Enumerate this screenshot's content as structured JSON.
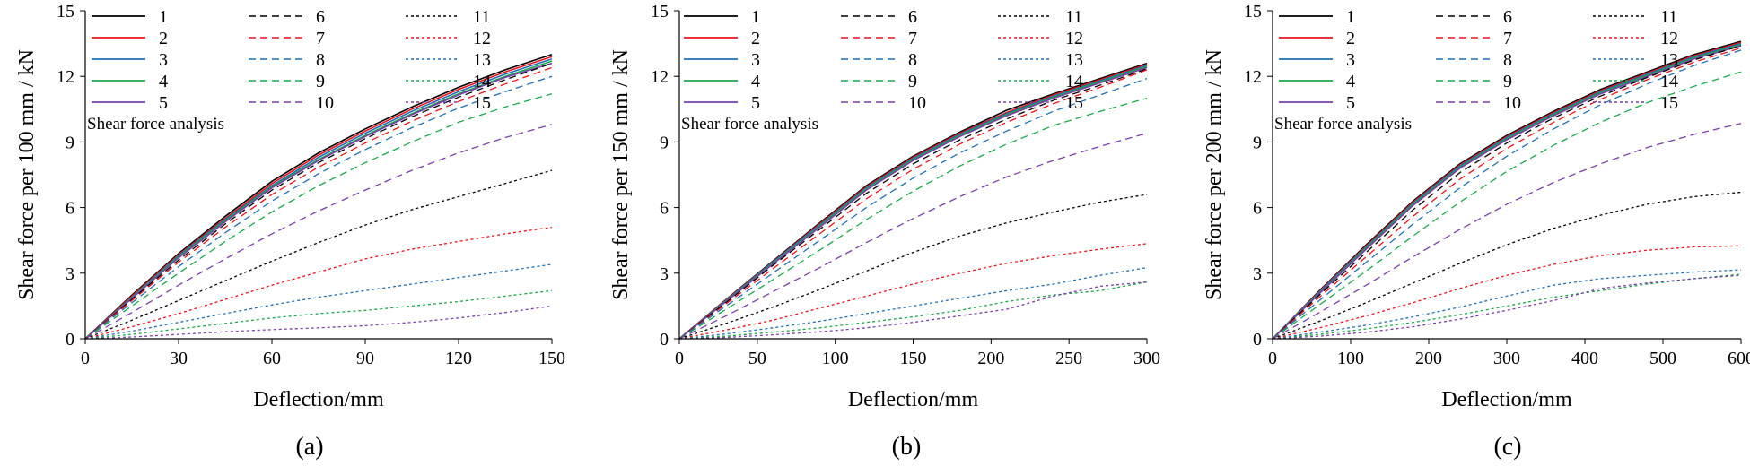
{
  "colors": {
    "black": "#000000",
    "red": "#e8141b",
    "blue": "#1f6fb5",
    "green": "#1aa84a",
    "purple": "#7a3fa8"
  },
  "series_style": [
    {
      "name": "1",
      "color": "#000000",
      "dash": "solid"
    },
    {
      "name": "2",
      "color": "#e8141b",
      "dash": "solid"
    },
    {
      "name": "3",
      "color": "#1f6fb5",
      "dash": "solid"
    },
    {
      "name": "4",
      "color": "#1aa84a",
      "dash": "solid"
    },
    {
      "name": "5",
      "color": "#7a3fa8",
      "dash": "solid"
    },
    {
      "name": "6",
      "color": "#000000",
      "dash": "dashed"
    },
    {
      "name": "7",
      "color": "#e8141b",
      "dash": "dashed"
    },
    {
      "name": "8",
      "color": "#1f6fb5",
      "dash": "dashed"
    },
    {
      "name": "9",
      "color": "#1aa84a",
      "dash": "dashed"
    },
    {
      "name": "10",
      "color": "#7a3fa8",
      "dash": "dashed"
    },
    {
      "name": "11",
      "color": "#000000",
      "dash": "dotted"
    },
    {
      "name": "12",
      "color": "#e8141b",
      "dash": "dotted"
    },
    {
      "name": "13",
      "color": "#1f6fb5",
      "dash": "dotted"
    },
    {
      "name": "14",
      "color": "#1aa84a",
      "dash": "dotted"
    },
    {
      "name": "15",
      "color": "#7a3fa8",
      "dash": "dotted"
    }
  ],
  "chart_data": [
    {
      "type": "line",
      "panel_label": "(a)",
      "annotation": "Shear force analysis",
      "xlabel": "Deflection/mm",
      "ylabel": "Shear force per 100 mm / kN",
      "xlim": [
        0,
        150
      ],
      "ylim": [
        0,
        15
      ],
      "xticks": [
        0,
        30,
        60,
        90,
        120,
        150
      ],
      "yticks": [
        0,
        3,
        6,
        9,
        12,
        15
      ],
      "legend": "top-left",
      "x": [
        0,
        15,
        30,
        45,
        60,
        75,
        90,
        105,
        120,
        135,
        150
      ],
      "series": [
        {
          "name": "1",
          "values": [
            0,
            2.0,
            3.9,
            5.6,
            7.2,
            8.5,
            9.6,
            10.6,
            11.5,
            12.3,
            13.0
          ]
        },
        {
          "name": "2",
          "values": [
            0,
            1.95,
            3.85,
            5.5,
            7.1,
            8.4,
            9.5,
            10.5,
            11.4,
            12.2,
            12.9
          ]
        },
        {
          "name": "3",
          "values": [
            0,
            1.9,
            3.8,
            5.45,
            7.0,
            8.3,
            9.4,
            10.4,
            11.3,
            12.1,
            12.8
          ]
        },
        {
          "name": "4",
          "values": [
            0,
            1.88,
            3.75,
            5.4,
            6.95,
            8.2,
            9.3,
            10.3,
            11.2,
            12.0,
            12.7
          ]
        },
        {
          "name": "5",
          "values": [
            0,
            1.85,
            3.7,
            5.35,
            6.9,
            8.15,
            9.25,
            10.25,
            11.15,
            11.95,
            12.6
          ]
        },
        {
          "name": "6",
          "values": [
            0,
            1.8,
            3.6,
            5.25,
            6.8,
            8.05,
            9.15,
            10.15,
            11.05,
            11.85,
            12.6
          ]
        },
        {
          "name": "7",
          "values": [
            0,
            1.75,
            3.5,
            5.1,
            6.6,
            7.85,
            8.95,
            9.95,
            10.85,
            11.65,
            12.4
          ]
        },
        {
          "name": "8",
          "values": [
            0,
            1.65,
            3.3,
            4.85,
            6.3,
            7.55,
            8.65,
            9.65,
            10.55,
            11.3,
            12.0
          ]
        },
        {
          "name": "9",
          "values": [
            0,
            1.5,
            3.0,
            4.45,
            5.8,
            7.0,
            8.05,
            9.0,
            9.9,
            10.6,
            11.2
          ]
        },
        {
          "name": "10",
          "values": [
            0,
            1.2,
            2.45,
            3.65,
            4.8,
            5.85,
            6.8,
            7.7,
            8.5,
            9.2,
            9.8
          ]
        },
        {
          "name": "11",
          "values": [
            0,
            0.85,
            1.75,
            2.65,
            3.55,
            4.4,
            5.2,
            5.9,
            6.5,
            7.1,
            7.7
          ]
        },
        {
          "name": "12",
          "values": [
            0,
            0.55,
            1.15,
            1.8,
            2.45,
            3.05,
            3.65,
            4.1,
            4.45,
            4.8,
            5.1
          ]
        },
        {
          "name": "13",
          "values": [
            0,
            0.35,
            0.75,
            1.15,
            1.55,
            1.9,
            2.2,
            2.5,
            2.8,
            3.1,
            3.4
          ]
        },
        {
          "name": "14",
          "values": [
            0,
            0.2,
            0.45,
            0.7,
            0.95,
            1.15,
            1.3,
            1.5,
            1.7,
            1.95,
            2.2
          ]
        },
        {
          "name": "15",
          "values": [
            0,
            0.08,
            0.2,
            0.32,
            0.42,
            0.5,
            0.6,
            0.75,
            0.95,
            1.2,
            1.5
          ]
        }
      ]
    },
    {
      "type": "line",
      "panel_label": "(b)",
      "annotation": "Shear force analysis",
      "xlabel": "Deflection/mm",
      "ylabel": "Shear force per 150 mm / kN",
      "xlim": [
        0,
        300
      ],
      "ylim": [
        0,
        15
      ],
      "xticks": [
        0,
        50,
        100,
        150,
        200,
        250,
        300
      ],
      "yticks": [
        0,
        3,
        6,
        9,
        12,
        15
      ],
      "legend": "top-left",
      "x": [
        0,
        30,
        60,
        90,
        120,
        150,
        180,
        210,
        240,
        270,
        300
      ],
      "series": [
        {
          "name": "1",
          "values": [
            0,
            1.8,
            3.55,
            5.3,
            7.0,
            8.35,
            9.45,
            10.45,
            11.2,
            11.9,
            12.6
          ]
        },
        {
          "name": "2",
          "values": [
            0,
            1.78,
            3.52,
            5.25,
            6.95,
            8.3,
            9.4,
            10.35,
            11.15,
            11.85,
            12.55
          ]
        },
        {
          "name": "3",
          "values": [
            0,
            1.75,
            3.5,
            5.2,
            6.9,
            8.25,
            9.35,
            10.3,
            11.1,
            11.8,
            12.5
          ]
        },
        {
          "name": "4",
          "values": [
            0,
            1.72,
            3.45,
            5.15,
            6.85,
            8.2,
            9.3,
            10.25,
            11.05,
            11.75,
            12.45
          ]
        },
        {
          "name": "5",
          "values": [
            0,
            1.7,
            3.42,
            5.1,
            6.8,
            8.15,
            9.25,
            10.2,
            11.0,
            11.7,
            12.4
          ]
        },
        {
          "name": "6",
          "values": [
            0,
            1.66,
            3.35,
            5.0,
            6.65,
            8.0,
            9.1,
            10.05,
            10.9,
            11.6,
            12.35
          ]
        },
        {
          "name": "7",
          "values": [
            0,
            1.6,
            3.2,
            4.8,
            6.4,
            7.75,
            8.9,
            9.9,
            10.75,
            11.5,
            12.3
          ]
        },
        {
          "name": "8",
          "values": [
            0,
            1.5,
            3.0,
            4.5,
            6.0,
            7.35,
            8.5,
            9.5,
            10.4,
            11.15,
            11.9
          ]
        },
        {
          "name": "9",
          "values": [
            0,
            1.35,
            2.7,
            4.05,
            5.45,
            6.75,
            7.9,
            8.9,
            9.75,
            10.4,
            11.0
          ]
        },
        {
          "name": "10",
          "values": [
            0,
            1.05,
            2.15,
            3.25,
            4.4,
            5.5,
            6.5,
            7.4,
            8.15,
            8.8,
            9.4
          ]
        },
        {
          "name": "11",
          "values": [
            0,
            0.7,
            1.45,
            2.25,
            3.1,
            3.95,
            4.7,
            5.3,
            5.8,
            6.25,
            6.6
          ]
        },
        {
          "name": "12",
          "values": [
            0,
            0.4,
            0.85,
            1.4,
            1.95,
            2.5,
            3.0,
            3.45,
            3.8,
            4.1,
            4.35
          ]
        },
        {
          "name": "13",
          "values": [
            0,
            0.22,
            0.5,
            0.8,
            1.15,
            1.5,
            1.85,
            2.2,
            2.5,
            2.9,
            3.25
          ]
        },
        {
          "name": "14",
          "values": [
            0,
            0.12,
            0.3,
            0.5,
            0.75,
            1.0,
            1.3,
            1.7,
            2.0,
            2.2,
            2.6
          ]
        },
        {
          "name": "15",
          "values": [
            0,
            0.06,
            0.18,
            0.32,
            0.5,
            0.75,
            1.05,
            1.35,
            1.95,
            2.4,
            2.6
          ]
        }
      ]
    },
    {
      "type": "line",
      "panel_label": "(c)",
      "annotation": "Shear force analysis",
      "xlabel": "Deflection/mm",
      "ylabel": "Shear force per 200 mm / kN",
      "xlim": [
        0,
        600
      ],
      "ylim": [
        0,
        15
      ],
      "xticks": [
        0,
        100,
        200,
        300,
        400,
        500,
        600
      ],
      "yticks": [
        0,
        3,
        6,
        9,
        12,
        15
      ],
      "legend": "top-left",
      "x": [
        0,
        60,
        120,
        180,
        240,
        300,
        360,
        420,
        480,
        540,
        600
      ],
      "series": [
        {
          "name": "1",
          "values": [
            0,
            2.2,
            4.3,
            6.3,
            8.0,
            9.3,
            10.4,
            11.4,
            12.2,
            13.0,
            13.6
          ]
        },
        {
          "name": "2",
          "values": [
            0,
            2.17,
            4.25,
            6.25,
            7.95,
            9.25,
            10.35,
            11.35,
            12.15,
            12.95,
            13.55
          ]
        },
        {
          "name": "3",
          "values": [
            0,
            2.14,
            4.2,
            6.2,
            7.9,
            9.2,
            10.3,
            11.3,
            12.1,
            12.9,
            13.5
          ]
        },
        {
          "name": "4",
          "values": [
            0,
            2.1,
            4.15,
            6.15,
            7.85,
            9.15,
            10.25,
            11.25,
            12.05,
            12.85,
            13.45
          ]
        },
        {
          "name": "5",
          "values": [
            0,
            2.07,
            4.1,
            6.1,
            7.8,
            9.1,
            10.2,
            11.2,
            12.0,
            12.8,
            13.4
          ]
        },
        {
          "name": "6",
          "values": [
            0,
            2.0,
            3.95,
            5.9,
            7.6,
            8.95,
            10.1,
            11.1,
            11.95,
            12.75,
            13.4
          ]
        },
        {
          "name": "7",
          "values": [
            0,
            1.9,
            3.75,
            5.6,
            7.3,
            8.7,
            9.9,
            10.95,
            11.85,
            12.65,
            13.3
          ]
        },
        {
          "name": "8",
          "values": [
            0,
            1.75,
            3.5,
            5.25,
            6.9,
            8.35,
            9.6,
            10.7,
            11.65,
            12.5,
            13.2
          ]
        },
        {
          "name": "9",
          "values": [
            0,
            1.55,
            3.1,
            4.7,
            6.25,
            7.65,
            8.85,
            9.9,
            10.8,
            11.55,
            12.2
          ]
        },
        {
          "name": "10",
          "values": [
            0,
            1.2,
            2.45,
            3.75,
            5.0,
            6.15,
            7.15,
            8.0,
            8.75,
            9.35,
            9.85
          ]
        },
        {
          "name": "11",
          "values": [
            0,
            0.8,
            1.65,
            2.55,
            3.45,
            4.3,
            5.05,
            5.65,
            6.15,
            6.5,
            6.7
          ]
        },
        {
          "name": "12",
          "values": [
            0,
            0.5,
            1.05,
            1.65,
            2.3,
            2.9,
            3.4,
            3.8,
            4.05,
            4.2,
            4.25
          ]
        },
        {
          "name": "13",
          "values": [
            0,
            0.3,
            0.62,
            1.0,
            1.45,
            1.95,
            2.45,
            2.75,
            2.9,
            3.05,
            3.15
          ]
        },
        {
          "name": "14",
          "values": [
            0,
            0.2,
            0.45,
            0.75,
            1.1,
            1.5,
            1.9,
            2.2,
            2.5,
            2.75,
            2.95
          ]
        },
        {
          "name": "15",
          "values": [
            0,
            0.12,
            0.3,
            0.55,
            0.9,
            1.3,
            1.75,
            2.3,
            2.55,
            2.75,
            2.9
          ]
        }
      ]
    }
  ]
}
